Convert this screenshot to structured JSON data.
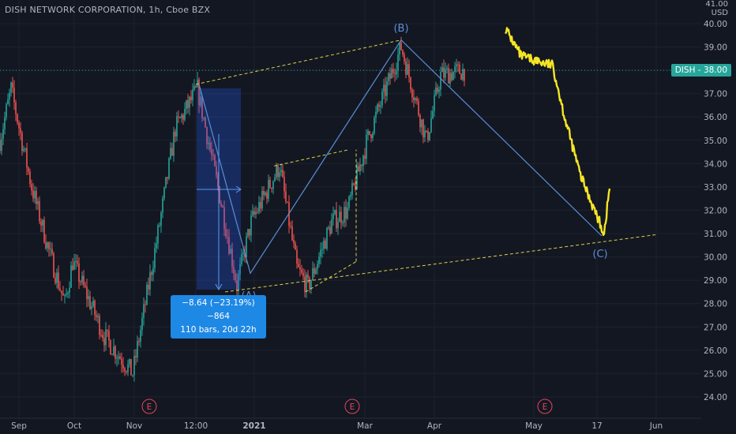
{
  "header": {
    "title": "DISH NETWORK CORPORATION, 1h, Cboe BZX",
    "currency_top": "41.00",
    "currency": "USD"
  },
  "price_tag": {
    "symbol": "DISH",
    "sep": " - ",
    "value": "38.00"
  },
  "measure_label": {
    "line1": "−8.64 (−23.19%) −864",
    "line2": "110 bars, 20d 22h"
  },
  "colors": {
    "background": "#131722",
    "up": "#26a69a",
    "down": "#ef5350",
    "wave": "#5b8fd6",
    "projection": "#f5e625",
    "channel": "#d8d24a",
    "earnings": "#e0475a"
  },
  "chart_data": {
    "type": "line",
    "title": "DISH NETWORK CORPORATION, 1h, Cboe BZX",
    "ylabel": "USD",
    "ylim": [
      23.5,
      41.0
    ],
    "y_ticks": [
      "41.00",
      "40.00",
      "39.00",
      "38.00",
      "37.00",
      "36.00",
      "35.00",
      "34.00",
      "33.00",
      "32.00",
      "31.00",
      "30.00",
      "29.00",
      "28.00",
      "27.00",
      "26.00",
      "25.00",
      "24.00"
    ],
    "x_ticks": [
      "Sep",
      "Oct",
      "Nov",
      "12:00",
      "2021",
      "Mar",
      "Apr",
      "May",
      "17",
      "Jun"
    ],
    "last_price": 38.0,
    "price_series_anchors": [
      {
        "t": "Sep",
        "v": 35.0
      },
      {
        "t": "early Sep",
        "v": 37.2
      },
      {
        "t": "mid Sep",
        "v": 33.0
      },
      {
        "t": "late Sep",
        "v": 30.0
      },
      {
        "t": "early Oct",
        "v": 28.0
      },
      {
        "t": "Oct",
        "v": 29.8
      },
      {
        "t": "late Oct",
        "v": 26.6
      },
      {
        "t": "Nov",
        "v": 25.0
      },
      {
        "t": "mid Nov",
        "v": 31.0
      },
      {
        "t": "late Nov",
        "v": 35.5
      },
      {
        "t": "12:00",
        "v": 37.2
      },
      {
        "t": "mid Dec",
        "v": 32.0
      },
      {
        "t": "late Dec",
        "v": 28.8
      },
      {
        "t": "2021",
        "v": 31.5
      },
      {
        "t": "mid Jan",
        "v": 33.9
      },
      {
        "t": "late Jan",
        "v": 29.5
      },
      {
        "t": "Feb",
        "v": 28.7
      },
      {
        "t": "mid Feb",
        "v": 31.5
      },
      {
        "t": "late Feb",
        "v": 32.0
      },
      {
        "t": "Mar",
        "v": 35.0
      },
      {
        "t": "mid Mar",
        "v": 39.0
      },
      {
        "t": "late Mar",
        "v": 35.0
      },
      {
        "t": "Apr",
        "v": 37.8
      },
      {
        "t": "mid Apr",
        "v": 38.0
      }
    ],
    "projection_series": [
      {
        "t": "late Apr",
        "v": 39.8
      },
      {
        "t": "early May",
        "v": 38.6
      },
      {
        "t": "May",
        "v": 38.2
      },
      {
        "t": "mid May",
        "v": 36.0
      },
      {
        "t": "mid May",
        "v": 33.5
      },
      {
        "t": "17",
        "v": 31.0
      },
      {
        "t": "17",
        "v": 33.0
      }
    ],
    "wave_labels": [
      {
        "label": "(A)",
        "v": 28.6
      },
      {
        "label": "(B)",
        "v": 39.3
      },
      {
        "label": "(C)",
        "v": 30.8
      }
    ],
    "measurement": {
      "change": -8.64,
      "change_pct": -23.19,
      "ticks": -864,
      "bars": 110,
      "duration": "20d 22h"
    },
    "earnings_markers": [
      "E",
      "E",
      "E"
    ]
  }
}
